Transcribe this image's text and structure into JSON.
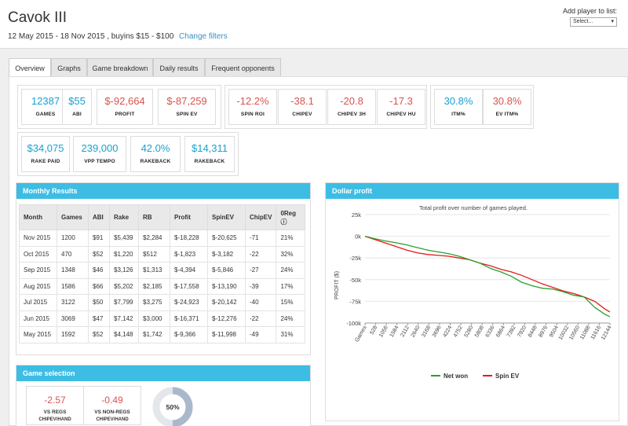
{
  "header": {
    "title": "Cavok III",
    "filter_summary": "12 May 2015 - 18 Nov 2015 , buyins $15 - $100",
    "change_filters": "Change filters",
    "add_player_label": "Add player to list:",
    "add_player_select": "Select...",
    "select_caret": "▾"
  },
  "tabs": [
    {
      "label": "Overview",
      "active": true
    },
    {
      "label": "Graphs"
    },
    {
      "label": "Game breakdown"
    },
    {
      "label": "Daily results"
    },
    {
      "label": "Frequent opponents"
    }
  ],
  "stats_group1": [
    {
      "value": "12387",
      "label": "GAMES",
      "color": "blue"
    },
    {
      "value": "$55",
      "label": "ABI",
      "color": "blue"
    },
    {
      "value": "$-92,664",
      "label": "PROFIT",
      "color": "red"
    },
    {
      "value": "$-87,259",
      "label": "SPIN EV",
      "color": "red"
    }
  ],
  "stats_group2": [
    {
      "value": "-12.2%",
      "label": "SPIN ROI",
      "color": "red"
    },
    {
      "value": "-38.1",
      "label": "CHIPEV",
      "color": "red"
    },
    {
      "value": "-20.8",
      "label": "CHIPEV 3H",
      "color": "red"
    },
    {
      "value": "-17.3",
      "label": "CHIPEV HU",
      "color": "red"
    }
  ],
  "stats_group3": [
    {
      "value": "30.8%",
      "label": "ITM%",
      "color": "blue"
    },
    {
      "value": "30.8%",
      "label": "EV ITM%",
      "color": "red"
    }
  ],
  "stats_group4": [
    {
      "value": "$34,075",
      "label": "RAKE PAID",
      "color": "blue"
    },
    {
      "value": "239,000",
      "label": "VPP TEMPO",
      "color": "blue"
    },
    {
      "value": "42.0%",
      "label": "RAKEBACK",
      "color": "blue"
    },
    {
      "value": "$14,311",
      "label": "RAKEBACK",
      "color": "blue"
    }
  ],
  "monthly": {
    "title": "Monthly Results",
    "columns": [
      "Month",
      "Games",
      "ABI",
      "Rake",
      "RB",
      "Profit",
      "SpinEV",
      "ChipEV",
      "0Reg"
    ],
    "info_icon": "ⓘ",
    "rows": [
      [
        "Nov 2015",
        "1200",
        "$91",
        "$5,439",
        "$2,284",
        "$-18,228",
        "$-20,625",
        "-71",
        "21%"
      ],
      [
        "Oct 2015",
        "470",
        "$52",
        "$1,220",
        "$512",
        "$-1,823",
        "$-3,182",
        "-22",
        "32%"
      ],
      [
        "Sep 2015",
        "1348",
        "$46",
        "$3,126",
        "$1,313",
        "$-4,394",
        "$-5,846",
        "-27",
        "24%"
      ],
      [
        "Aug 2015",
        "1586",
        "$66",
        "$5,202",
        "$2,185",
        "$-17,558",
        "$-13,190",
        "-39",
        "17%"
      ],
      [
        "Jul 2015",
        "3122",
        "$50",
        "$7,799",
        "$3,275",
        "$-24,923",
        "$-20,142",
        "-40",
        "15%"
      ],
      [
        "Jun 2015",
        "3069",
        "$47",
        "$7,142",
        "$3,000",
        "$-16,371",
        "$-12,276",
        "-22",
        "24%"
      ],
      [
        "May 2015",
        "1592",
        "$52",
        "$4,148",
        "$1,742",
        "$-9,366",
        "$-11,998",
        "-49",
        "31%"
      ]
    ]
  },
  "dollar_profit": {
    "title": "Dollar profit"
  },
  "chart_data": {
    "type": "line",
    "title": "Total profit over number of games played.",
    "ylabel": "PROFIT ($)",
    "xlabel": "",
    "ylim": [
      -100000,
      25000
    ],
    "yticks": [
      25000,
      0,
      -25000,
      -50000,
      -75000,
      -100000
    ],
    "ytick_labels": [
      "25k",
      "0k",
      "-25k",
      "-50k",
      "-75k",
      "-100k"
    ],
    "xlim": [
      0,
      12387
    ],
    "xtick_labels": [
      "Games",
      "528",
      "1056",
      "1584",
      "2112",
      "2640",
      "3168",
      "3696",
      "4224",
      "4752",
      "5280",
      "5808",
      "6336",
      "6864",
      "7392",
      "7920",
      "8448",
      "8976",
      "9504",
      "10032",
      "10560",
      "11088",
      "11616",
      "12144"
    ],
    "grid": true,
    "legend": "bottom",
    "series": [
      {
        "name": "Net won",
        "color": "#2ca02c",
        "x": [
          0,
          528,
          1056,
          1584,
          2112,
          2640,
          3168,
          3696,
          4224,
          4752,
          5280,
          5808,
          6336,
          6864,
          7392,
          7920,
          8448,
          8976,
          9504,
          10032,
          10560,
          11088,
          11616,
          12144,
          12387
        ],
        "y": [
          0,
          -3000,
          -5500,
          -7500,
          -10000,
          -13000,
          -16000,
          -18000,
          -20000,
          -23000,
          -27000,
          -31000,
          -37000,
          -41000,
          -46000,
          -53000,
          -57000,
          -60000,
          -61000,
          -64000,
          -68000,
          -70000,
          -82000,
          -90000,
          -92664
        ]
      },
      {
        "name": "Spin EV",
        "color": "#e31a1c",
        "x": [
          0,
          528,
          1056,
          1584,
          2112,
          2640,
          3168,
          3696,
          4224,
          4752,
          5280,
          5808,
          6336,
          6864,
          7392,
          7920,
          8448,
          8976,
          9504,
          10032,
          10560,
          11088,
          11616,
          12144,
          12387
        ],
        "y": [
          0,
          -4000,
          -8000,
          -12000,
          -16000,
          -19000,
          -21000,
          -22000,
          -23000,
          -25000,
          -27000,
          -31000,
          -34000,
          -38000,
          -41000,
          -45000,
          -50000,
          -55000,
          -59000,
          -63000,
          -66000,
          -70000,
          -75000,
          -84000,
          -87259
        ]
      }
    ]
  },
  "game_selection": {
    "title": "Game selection",
    "cards": [
      {
        "value": "-2.57",
        "label": "VS REGS",
        "sub": "CHIPEV/HAND"
      },
      {
        "value": "-0.49",
        "label": "VS NON-REGS",
        "sub": "CHIPEV/HAND"
      }
    ],
    "donut_label": "50%",
    "donut_value": 0.5
  },
  "colors": {
    "accent": "#3dbde3",
    "blue": "#1aa0d0",
    "red": "#d9534f"
  }
}
